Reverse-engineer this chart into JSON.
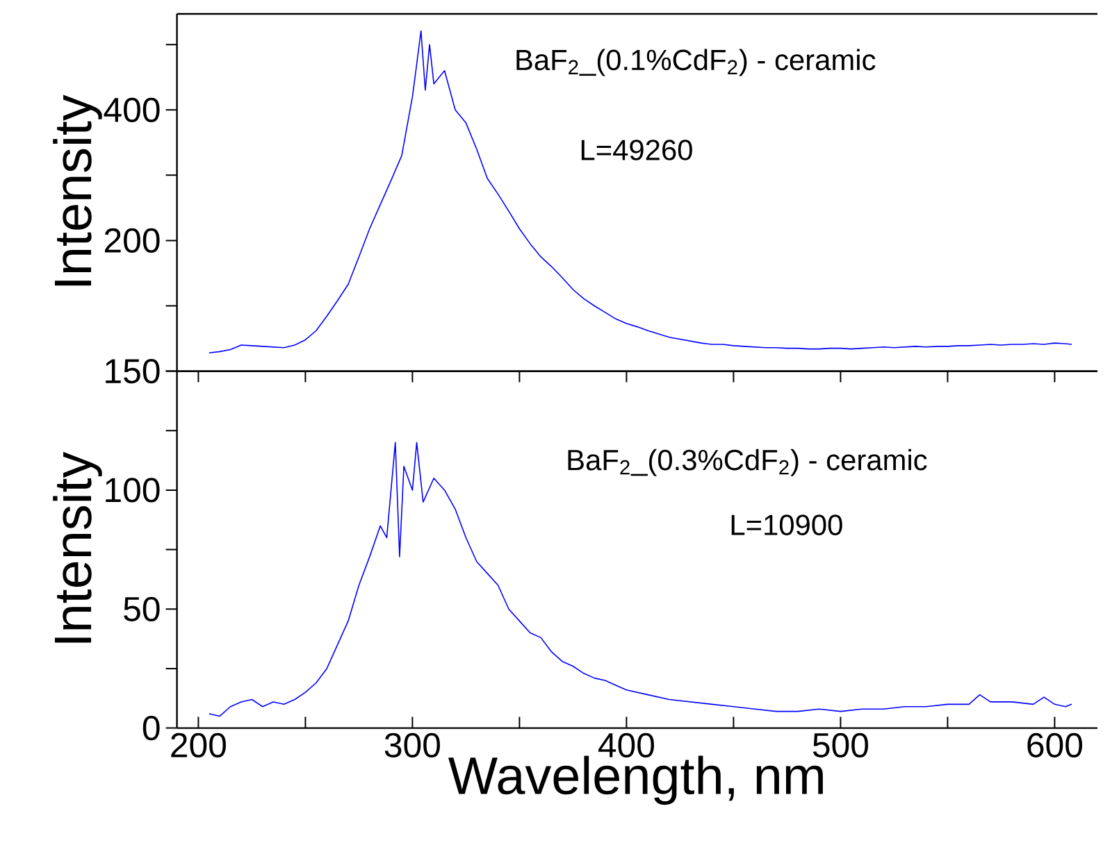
{
  "chart_data": [
    {
      "type": "line",
      "ylabel": "Intensity",
      "xlim": [
        190,
        620
      ],
      "ylim": [
        0,
        547
      ],
      "tick_labels": "y",
      "yticks": [
        {
          "value": 0,
          "label": null
        },
        {
          "value": 100,
          "label": null
        },
        200,
        {
          "value": 300,
          "label": null
        },
        400,
        {
          "value": 500,
          "label": null
        }
      ],
      "annotations": [
        "BaF$_{2}$_(0.1%CdF$_{2}$) - ceramic",
        "L=49260"
      ],
      "series": [
        {
          "color": "#0000ff",
          "x": [
            205,
            210,
            215,
            220,
            225,
            230,
            235,
            240,
            245,
            250,
            255,
            260,
            265,
            270,
            275,
            280,
            285,
            290,
            295,
            300,
            302,
            304,
            306,
            308,
            310,
            315,
            320,
            325,
            330,
            335,
            340,
            345,
            350,
            355,
            360,
            365,
            370,
            375,
            380,
            385,
            390,
            395,
            400,
            405,
            410,
            415,
            420,
            425,
            430,
            435,
            440,
            445,
            450,
            455,
            460,
            465,
            470,
            475,
            480,
            485,
            490,
            495,
            500,
            505,
            510,
            515,
            520,
            525,
            530,
            535,
            540,
            545,
            550,
            555,
            560,
            565,
            570,
            575,
            580,
            585,
            590,
            595,
            600,
            605,
            608
          ],
          "values": [
            28,
            30,
            33,
            40,
            39,
            38,
            37,
            36,
            40,
            48,
            62,
            84,
            108,
            133,
            175,
            218,
            255,
            292,
            330,
            420,
            470,
            521,
            430,
            500,
            440,
            460,
            400,
            380,
            340,
            295,
            271,
            245,
            218,
            195,
            175,
            160,
            143,
            125,
            111,
            100,
            90,
            80,
            73,
            68,
            62,
            57,
            52,
            49,
            46,
            43,
            41,
            41,
            39,
            38,
            37,
            36,
            36,
            35,
            35,
            34,
            34,
            35,
            35,
            34,
            35,
            36,
            37,
            36,
            37,
            38,
            37,
            38,
            38,
            39,
            39,
            40,
            41,
            40,
            41,
            41,
            42,
            41,
            43,
            42,
            41
          ]
        }
      ]
    },
    {
      "type": "line",
      "xlabel": "Wavelength, nm",
      "ylabel": "Intensity",
      "xlim": [
        190,
        620
      ],
      "ylim": [
        0,
        150
      ],
      "xticks": [
        200,
        {
          "value": 250,
          "label": null
        },
        300,
        {
          "value": 350,
          "label": null
        },
        400,
        {
          "value": 450,
          "label": null
        },
        500,
        {
          "value": 550,
          "label": null
        },
        600
      ],
      "yticks": [
        0,
        {
          "value": 25,
          "label": null
        },
        50,
        {
          "value": 75,
          "label": null
        },
        100,
        {
          "value": 125,
          "label": null
        },
        150
      ],
      "annotations": [
        "BaF$_{2}$_(0.3%CdF$_{2}$) - ceramic",
        "L=10900"
      ],
      "series": [
        {
          "color": "#0000ff",
          "x": [
            205,
            210,
            215,
            220,
            225,
            230,
            235,
            240,
            245,
            250,
            255,
            260,
            265,
            270,
            275,
            280,
            285,
            288,
            290,
            292,
            294,
            296,
            300,
            302,
            305,
            310,
            315,
            320,
            325,
            330,
            335,
            340,
            345,
            350,
            355,
            360,
            365,
            370,
            375,
            380,
            385,
            390,
            395,
            400,
            410,
            420,
            430,
            440,
            450,
            460,
            470,
            480,
            490,
            500,
            510,
            520,
            530,
            540,
            550,
            560,
            565,
            570,
            580,
            590,
            595,
            600,
            605,
            608
          ],
          "values": [
            6,
            5,
            9,
            11,
            12,
            9,
            11,
            10,
            12,
            15,
            19,
            25,
            35,
            45,
            60,
            72,
            85,
            80,
            100,
            120,
            72,
            110,
            100,
            120,
            95,
            105,
            100,
            92,
            80,
            70,
            65,
            60,
            50,
            45,
            40,
            38,
            32,
            28,
            26,
            23,
            21,
            20,
            18,
            16,
            14,
            12,
            11,
            10,
            9,
            8,
            7,
            7,
            8,
            7,
            8,
            8,
            9,
            9,
            10,
            10,
            14,
            11,
            11,
            10,
            13,
            10,
            9,
            10
          ]
        }
      ]
    }
  ]
}
